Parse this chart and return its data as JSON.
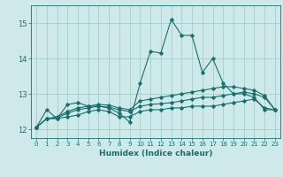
{
  "xlabel": "Humidex (Indice chaleur)",
  "bg_color": "#cee9e9",
  "grid_color": "#a8cccc",
  "line_color": "#1a6e6e",
  "xlim": [
    -0.5,
    23.5
  ],
  "ylim": [
    11.75,
    15.5
  ],
  "yticks": [
    12,
    13,
    14,
    15
  ],
  "xticks": [
    0,
    1,
    2,
    3,
    4,
    5,
    6,
    7,
    8,
    9,
    10,
    11,
    12,
    13,
    14,
    15,
    16,
    17,
    18,
    19,
    20,
    21,
    22,
    23
  ],
  "series1_x": [
    0,
    1,
    2,
    3,
    4,
    5,
    6,
    7,
    8,
    9,
    10,
    11,
    12,
    13,
    14,
    15,
    16,
    17,
    18,
    19,
    20,
    21,
    22,
    23
  ],
  "series1_y": [
    12.05,
    12.55,
    12.3,
    12.7,
    12.75,
    12.65,
    12.65,
    12.6,
    12.45,
    12.2,
    13.3,
    14.2,
    14.15,
    15.1,
    14.65,
    14.65,
    13.6,
    14.0,
    13.3,
    13.0,
    13.0,
    12.9,
    12.55,
    12.55
  ],
  "series2_x": [
    0,
    1,
    2,
    3,
    4,
    5,
    6,
    7,
    8,
    9,
    10,
    11,
    12,
    13,
    14,
    15,
    16,
    17,
    18,
    19,
    20,
    21,
    22,
    23
  ],
  "series2_y": [
    12.05,
    12.3,
    12.3,
    12.35,
    12.4,
    12.5,
    12.55,
    12.5,
    12.35,
    12.35,
    12.5,
    12.55,
    12.55,
    12.6,
    12.6,
    12.65,
    12.65,
    12.65,
    12.7,
    12.75,
    12.8,
    12.85,
    12.6,
    12.55
  ],
  "series3_x": [
    0,
    1,
    2,
    3,
    4,
    5,
    6,
    7,
    8,
    9,
    10,
    11,
    12,
    13,
    14,
    15,
    16,
    17,
    18,
    19,
    20,
    21,
    22,
    23
  ],
  "series3_y": [
    12.05,
    12.3,
    12.32,
    12.45,
    12.55,
    12.6,
    12.65,
    12.62,
    12.55,
    12.5,
    12.65,
    12.7,
    12.72,
    12.75,
    12.8,
    12.85,
    12.9,
    12.9,
    12.95,
    13.0,
    13.05,
    13.0,
    12.9,
    12.55
  ],
  "series4_x": [
    0,
    1,
    2,
    3,
    4,
    5,
    6,
    7,
    8,
    9,
    10,
    11,
    12,
    13,
    14,
    15,
    16,
    17,
    18,
    19,
    20,
    21,
    22,
    23
  ],
  "series4_y": [
    12.05,
    12.3,
    12.35,
    12.5,
    12.6,
    12.65,
    12.7,
    12.68,
    12.6,
    12.55,
    12.8,
    12.85,
    12.9,
    12.95,
    13.0,
    13.05,
    13.1,
    13.15,
    13.2,
    13.2,
    13.15,
    13.1,
    12.95,
    12.55
  ]
}
